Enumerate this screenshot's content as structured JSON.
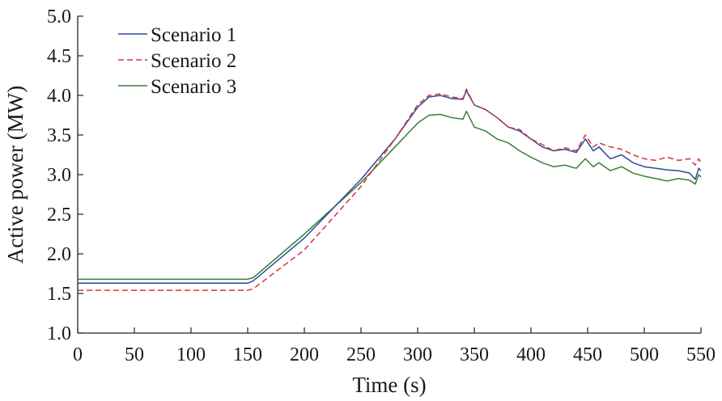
{
  "chart_data": {
    "type": "line",
    "title": "",
    "xlabel": "Time (s)",
    "ylabel": "Active power (MW)",
    "xlim": [
      0,
      550
    ],
    "ylim": [
      1.0,
      5.0
    ],
    "xticks": [
      "0",
      "50",
      "100",
      "150",
      "200",
      "250",
      "300",
      "350",
      "400",
      "450",
      "500",
      "550"
    ],
    "yticks": [
      "1.0",
      "1.5",
      "2.0",
      "2.5",
      "3.0",
      "3.5",
      "4.0",
      "4.5",
      "5.0"
    ],
    "grid": false,
    "legend_position": "top-left",
    "series": [
      {
        "name": "Scenario 1",
        "color": "#2b4a9c",
        "dash": "solid",
        "x": [
          0,
          150,
          155,
          200,
          250,
          280,
          300,
          310,
          320,
          330,
          340,
          343,
          350,
          360,
          370,
          380,
          390,
          400,
          410,
          420,
          430,
          440,
          448,
          455,
          460,
          470,
          480,
          490,
          500,
          510,
          520,
          530,
          540,
          545,
          548,
          550
        ],
        "y": [
          1.63,
          1.63,
          1.66,
          2.2,
          2.94,
          3.45,
          3.85,
          3.98,
          4.0,
          3.96,
          3.95,
          4.06,
          3.88,
          3.82,
          3.72,
          3.6,
          3.55,
          3.45,
          3.35,
          3.3,
          3.32,
          3.28,
          3.45,
          3.3,
          3.35,
          3.2,
          3.25,
          3.15,
          3.1,
          3.08,
          3.06,
          3.05,
          3.02,
          2.94,
          3.08,
          3.05
        ]
      },
      {
        "name": "Scenario 2",
        "color": "#d9343a",
        "dash": "dashed",
        "x": [
          0,
          150,
          155,
          200,
          250,
          280,
          300,
          310,
          320,
          330,
          340,
          343,
          350,
          360,
          370,
          380,
          390,
          400,
          410,
          420,
          430,
          440,
          448,
          455,
          460,
          470,
          480,
          490,
          500,
          510,
          520,
          530,
          540,
          545,
          548,
          550
        ],
        "y": [
          1.54,
          1.54,
          1.56,
          2.05,
          2.85,
          3.45,
          3.88,
          4.0,
          4.02,
          3.98,
          3.96,
          4.08,
          3.88,
          3.82,
          3.72,
          3.6,
          3.57,
          3.45,
          3.38,
          3.3,
          3.34,
          3.3,
          3.5,
          3.35,
          3.4,
          3.35,
          3.32,
          3.25,
          3.2,
          3.18,
          3.22,
          3.18,
          3.2,
          3.12,
          3.2,
          3.15
        ]
      },
      {
        "name": "Scenario 3",
        "color": "#3a7d3a",
        "dash": "solid",
        "x": [
          0,
          150,
          155,
          200,
          250,
          280,
          300,
          310,
          320,
          330,
          340,
          343,
          350,
          360,
          370,
          380,
          390,
          400,
          410,
          420,
          430,
          440,
          448,
          455,
          460,
          470,
          480,
          490,
          500,
          510,
          520,
          530,
          540,
          545,
          548,
          550
        ],
        "y": [
          1.68,
          1.68,
          1.7,
          2.25,
          2.9,
          3.35,
          3.65,
          3.75,
          3.76,
          3.72,
          3.7,
          3.8,
          3.6,
          3.55,
          3.45,
          3.4,
          3.3,
          3.22,
          3.15,
          3.1,
          3.12,
          3.08,
          3.2,
          3.1,
          3.15,
          3.05,
          3.1,
          3.02,
          2.98,
          2.95,
          2.92,
          2.95,
          2.93,
          2.88,
          3.0,
          2.97
        ]
      }
    ]
  }
}
